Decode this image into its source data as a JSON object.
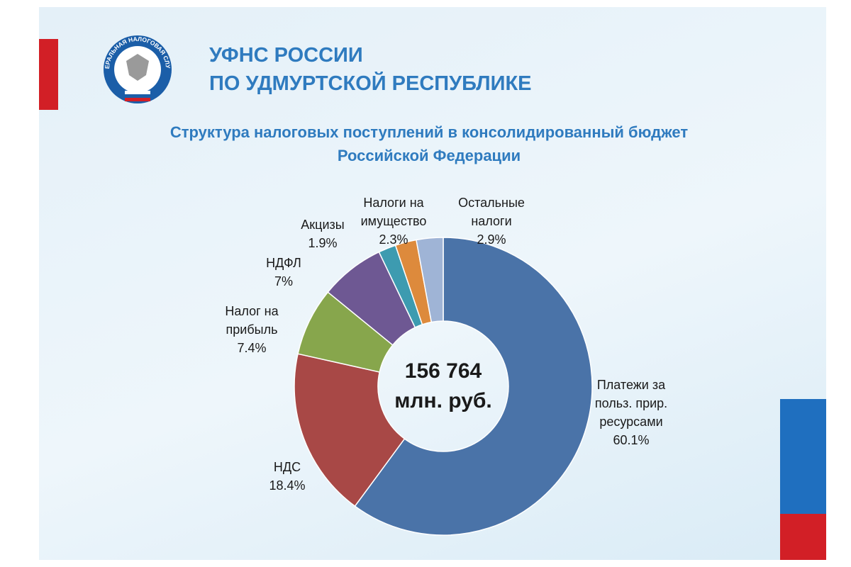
{
  "header": {
    "title_line1": "УФНС РОССИИ",
    "title_line2": "ПО УДМУРТСКОЙ РЕСПУБЛИКЕ",
    "logo_text": "ФЕДЕРАЛЬНАЯ НАЛОГОВАЯ СЛУЖБА"
  },
  "chart_data": {
    "type": "donut",
    "title": "Структура налоговых поступлений в консолидированный бюджет\nРоссийской Федерации",
    "center_label": "156 764\nмлн. руб.",
    "categories": [
      "Платежи за\nпольз. прир.\nресурсами",
      "НДС",
      "Налог на\nприбыль",
      "НДФЛ",
      "Акцизы",
      "Налоги на\nимущество",
      "Остальные\nналоги"
    ],
    "values": [
      60.1,
      18.4,
      7.4,
      7,
      1.9,
      2.3,
      2.9
    ],
    "value_labels": [
      "60.1%",
      "18.4%",
      "7.4%",
      "7%",
      "1.9%",
      "2.3%",
      "2.9%"
    ],
    "colors": [
      "#4a73a8",
      "#a84846",
      "#87a64c",
      "#6e5893",
      "#3d9bb0",
      "#dd8a3c",
      "#9fb4d6"
    ]
  }
}
